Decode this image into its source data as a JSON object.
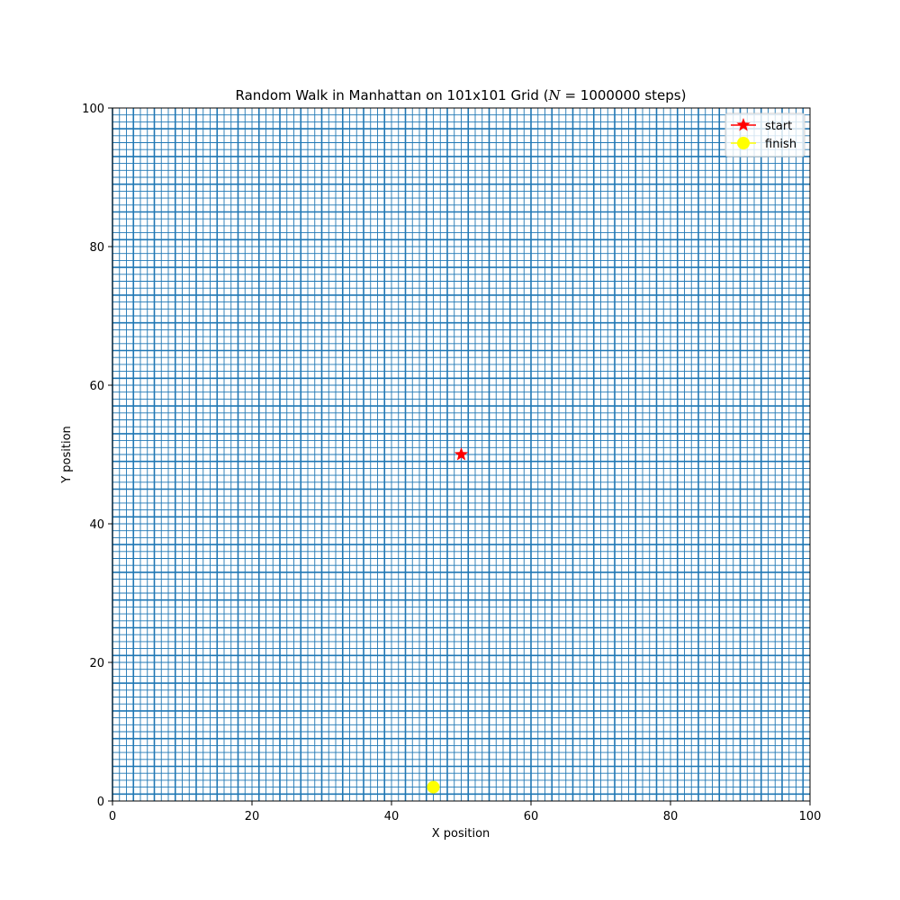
{
  "chart_data": {
    "type": "line",
    "title": "Random Walk in Manhattan on 101x101 Grid (",
    "title_math_var": "N",
    "title_math_rest": " = 1000000 steps)",
    "xlabel": "X position",
    "ylabel": "Y position",
    "xlim": [
      0,
      100
    ],
    "ylim": [
      0,
      100
    ],
    "xticks": [
      0,
      20,
      40,
      60,
      80,
      100
    ],
    "yticks": [
      0,
      20,
      40,
      60,
      80,
      100
    ],
    "xtick_labels": [
      "0",
      "20",
      "40",
      "60",
      "80",
      "100"
    ],
    "ytick_labels": [
      "0",
      "20",
      "40",
      "60",
      "80",
      "100"
    ],
    "grid": false,
    "legend_position": "top-right",
    "grid_size": 101,
    "steps": 1000000,
    "series": [
      {
        "name": "walk path",
        "color": "#1f77b4",
        "coverage": "all grid edges between integer lattice points 0..100 visited",
        "x_range": [
          0,
          100
        ],
        "y_range": [
          0,
          100
        ]
      }
    ],
    "markers": [
      {
        "name": "start",
        "x": 50,
        "y": 50,
        "marker": "star",
        "color": "#ff0000"
      },
      {
        "name": "finish",
        "x": 46,
        "y": 2,
        "marker": "circle",
        "color": "#ffff00"
      }
    ]
  },
  "legend": {
    "items": [
      {
        "label": "start",
        "color": "#ff0000",
        "marker": "star"
      },
      {
        "label": "finish",
        "color": "#ffff00",
        "marker": "circle"
      }
    ]
  }
}
